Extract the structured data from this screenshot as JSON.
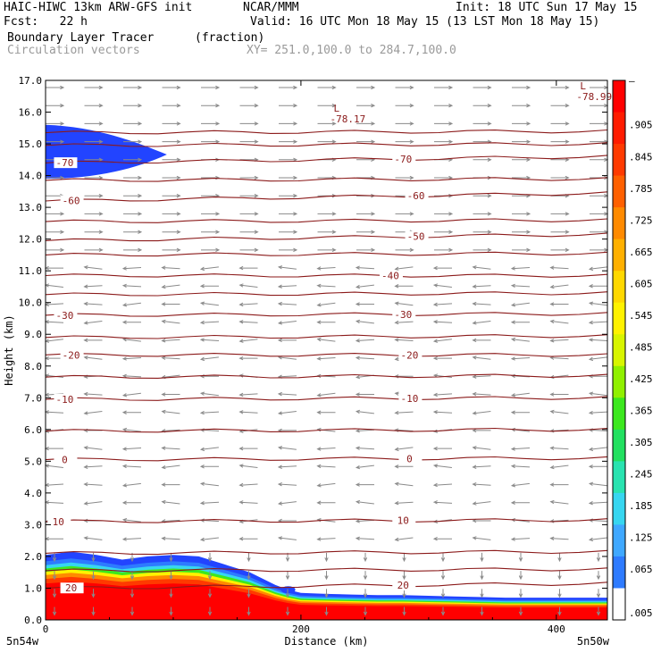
{
  "header": {
    "title": "HAIC-HIWC 13km ARW-GFS init",
    "org": "NCAR/MMM",
    "init": "Init: 18 UTC Sun 17 May 15",
    "fcst": "Fcst:   22 h",
    "valid": "Valid: 16 UTC Mon 18 May 15 (13 LST Mon 18 May 15)",
    "field": "Boundary Layer Tracer",
    "field_units": "(fraction)",
    "vectors": "Circulation vectors",
    "xy": "XY= 251.0,100.0 to 284.7,100.0"
  },
  "colors": {
    "contour": "#8b1a1a",
    "vector": "#8a8a8a",
    "tracer_colorbar": [
      "#ffffff",
      "#2244ff",
      "#2e7bff",
      "#3fa8ff",
      "#37d6f0",
      "#29e3b0",
      "#22e060",
      "#3ce81e",
      "#90f000",
      "#d8f500",
      "#fff200",
      "#ffd800",
      "#ffb000",
      "#ff8a00",
      "#ff6000",
      "#ff3a00",
      "#ff1c00",
      "#ff0000"
    ]
  },
  "chart_data": {
    "type": "contour",
    "xlabel": "Distance (km)",
    "ylabel": "Height (km)",
    "xlim": [
      0,
      440
    ],
    "ylim": [
      0,
      17
    ],
    "xticks": [
      0,
      200,
      400
    ],
    "yticks": [
      "0.0",
      "1.0",
      "2.0",
      "3.0",
      "4.0",
      "5.0",
      "6.0",
      "7.0",
      "8.0",
      "9.0",
      "10.0",
      "11.0",
      "12.0",
      "13.0",
      "14.0",
      "15.0",
      "16.0",
      "17.0"
    ],
    "x_end_labels": [
      "5n54w",
      "5n50w"
    ],
    "colorbar_labels": [
      ".005",
      ".065",
      ".125",
      ".185",
      ".245",
      ".305",
      ".365",
      ".425",
      ".485",
      ".545",
      ".605",
      ".665",
      ".725",
      ".785",
      ".845",
      ".905",
      "–"
    ],
    "temperature_contours": [
      {
        "label": "20",
        "y_left": 1.0,
        "y_right": 1.15,
        "label_x": [
          20,
          280
        ]
      },
      {
        "label": "10",
        "y_left": 3.1,
        "y_right": 3.15,
        "label_x": [
          10,
          280
        ]
      },
      {
        "label": "0",
        "y_left": 5.05,
        "y_right": 5.1,
        "label_x": [
          15,
          285
        ]
      },
      {
        "label": "-10",
        "y_left": 6.95,
        "y_right": 7.0,
        "label_x": [
          15,
          285
        ]
      },
      {
        "label": "-20",
        "y_left": 8.35,
        "y_right": 8.35,
        "label_x": [
          20,
          285
        ]
      },
      {
        "label": "-30",
        "y_left": 9.6,
        "y_right": 9.65,
        "label_x": [
          15,
          280
        ]
      },
      {
        "label": "-40",
        "y_left": 10.85,
        "y_right": 10.85,
        "label_x": [
          270
        ]
      },
      {
        "label": "-50",
        "y_left": 11.95,
        "y_right": 12.15,
        "label_x": [
          290
        ]
      },
      {
        "label": "-60",
        "y_left": 13.2,
        "y_right": 13.45,
        "label_x": [
          20,
          290
        ]
      },
      {
        "label": "-70",
        "y_left": 14.4,
        "y_right": 14.6,
        "label_x": [
          15,
          280
        ]
      }
    ],
    "extra_contours_y": [
      1.55,
      2.1,
      5.95,
      7.65,
      8.9,
      10.25,
      11.5,
      12.55,
      13.85,
      14.95,
      15.35
    ],
    "minima": [
      {
        "label": "L",
        "value": "-78.17",
        "x": 227,
        "y": 15.9
      },
      {
        "label": "L",
        "value": "-78.99",
        "x": 420,
        "y": 16.6
      }
    ],
    "tracer_surface_layer": {
      "x": [
        0,
        20,
        40,
        60,
        80,
        100,
        120,
        140,
        160,
        180,
        190,
        200,
        220,
        240,
        260,
        280,
        300,
        320,
        340,
        360,
        380,
        400,
        420,
        440
      ],
      "top": [
        2.05,
        2.15,
        2.05,
        1.9,
        2.0,
        2.05,
        2.0,
        1.75,
        1.5,
        1.1,
        0.95,
        0.85,
        0.82,
        0.8,
        0.78,
        0.78,
        0.76,
        0.74,
        0.72,
        0.7,
        0.7,
        0.7,
        0.7,
        0.7
      ]
    },
    "tracer_upper_blob": {
      "x_range": [
        0,
        95
      ],
      "y_range": [
        13.9,
        15.6
      ],
      "value": ".065"
    }
  }
}
